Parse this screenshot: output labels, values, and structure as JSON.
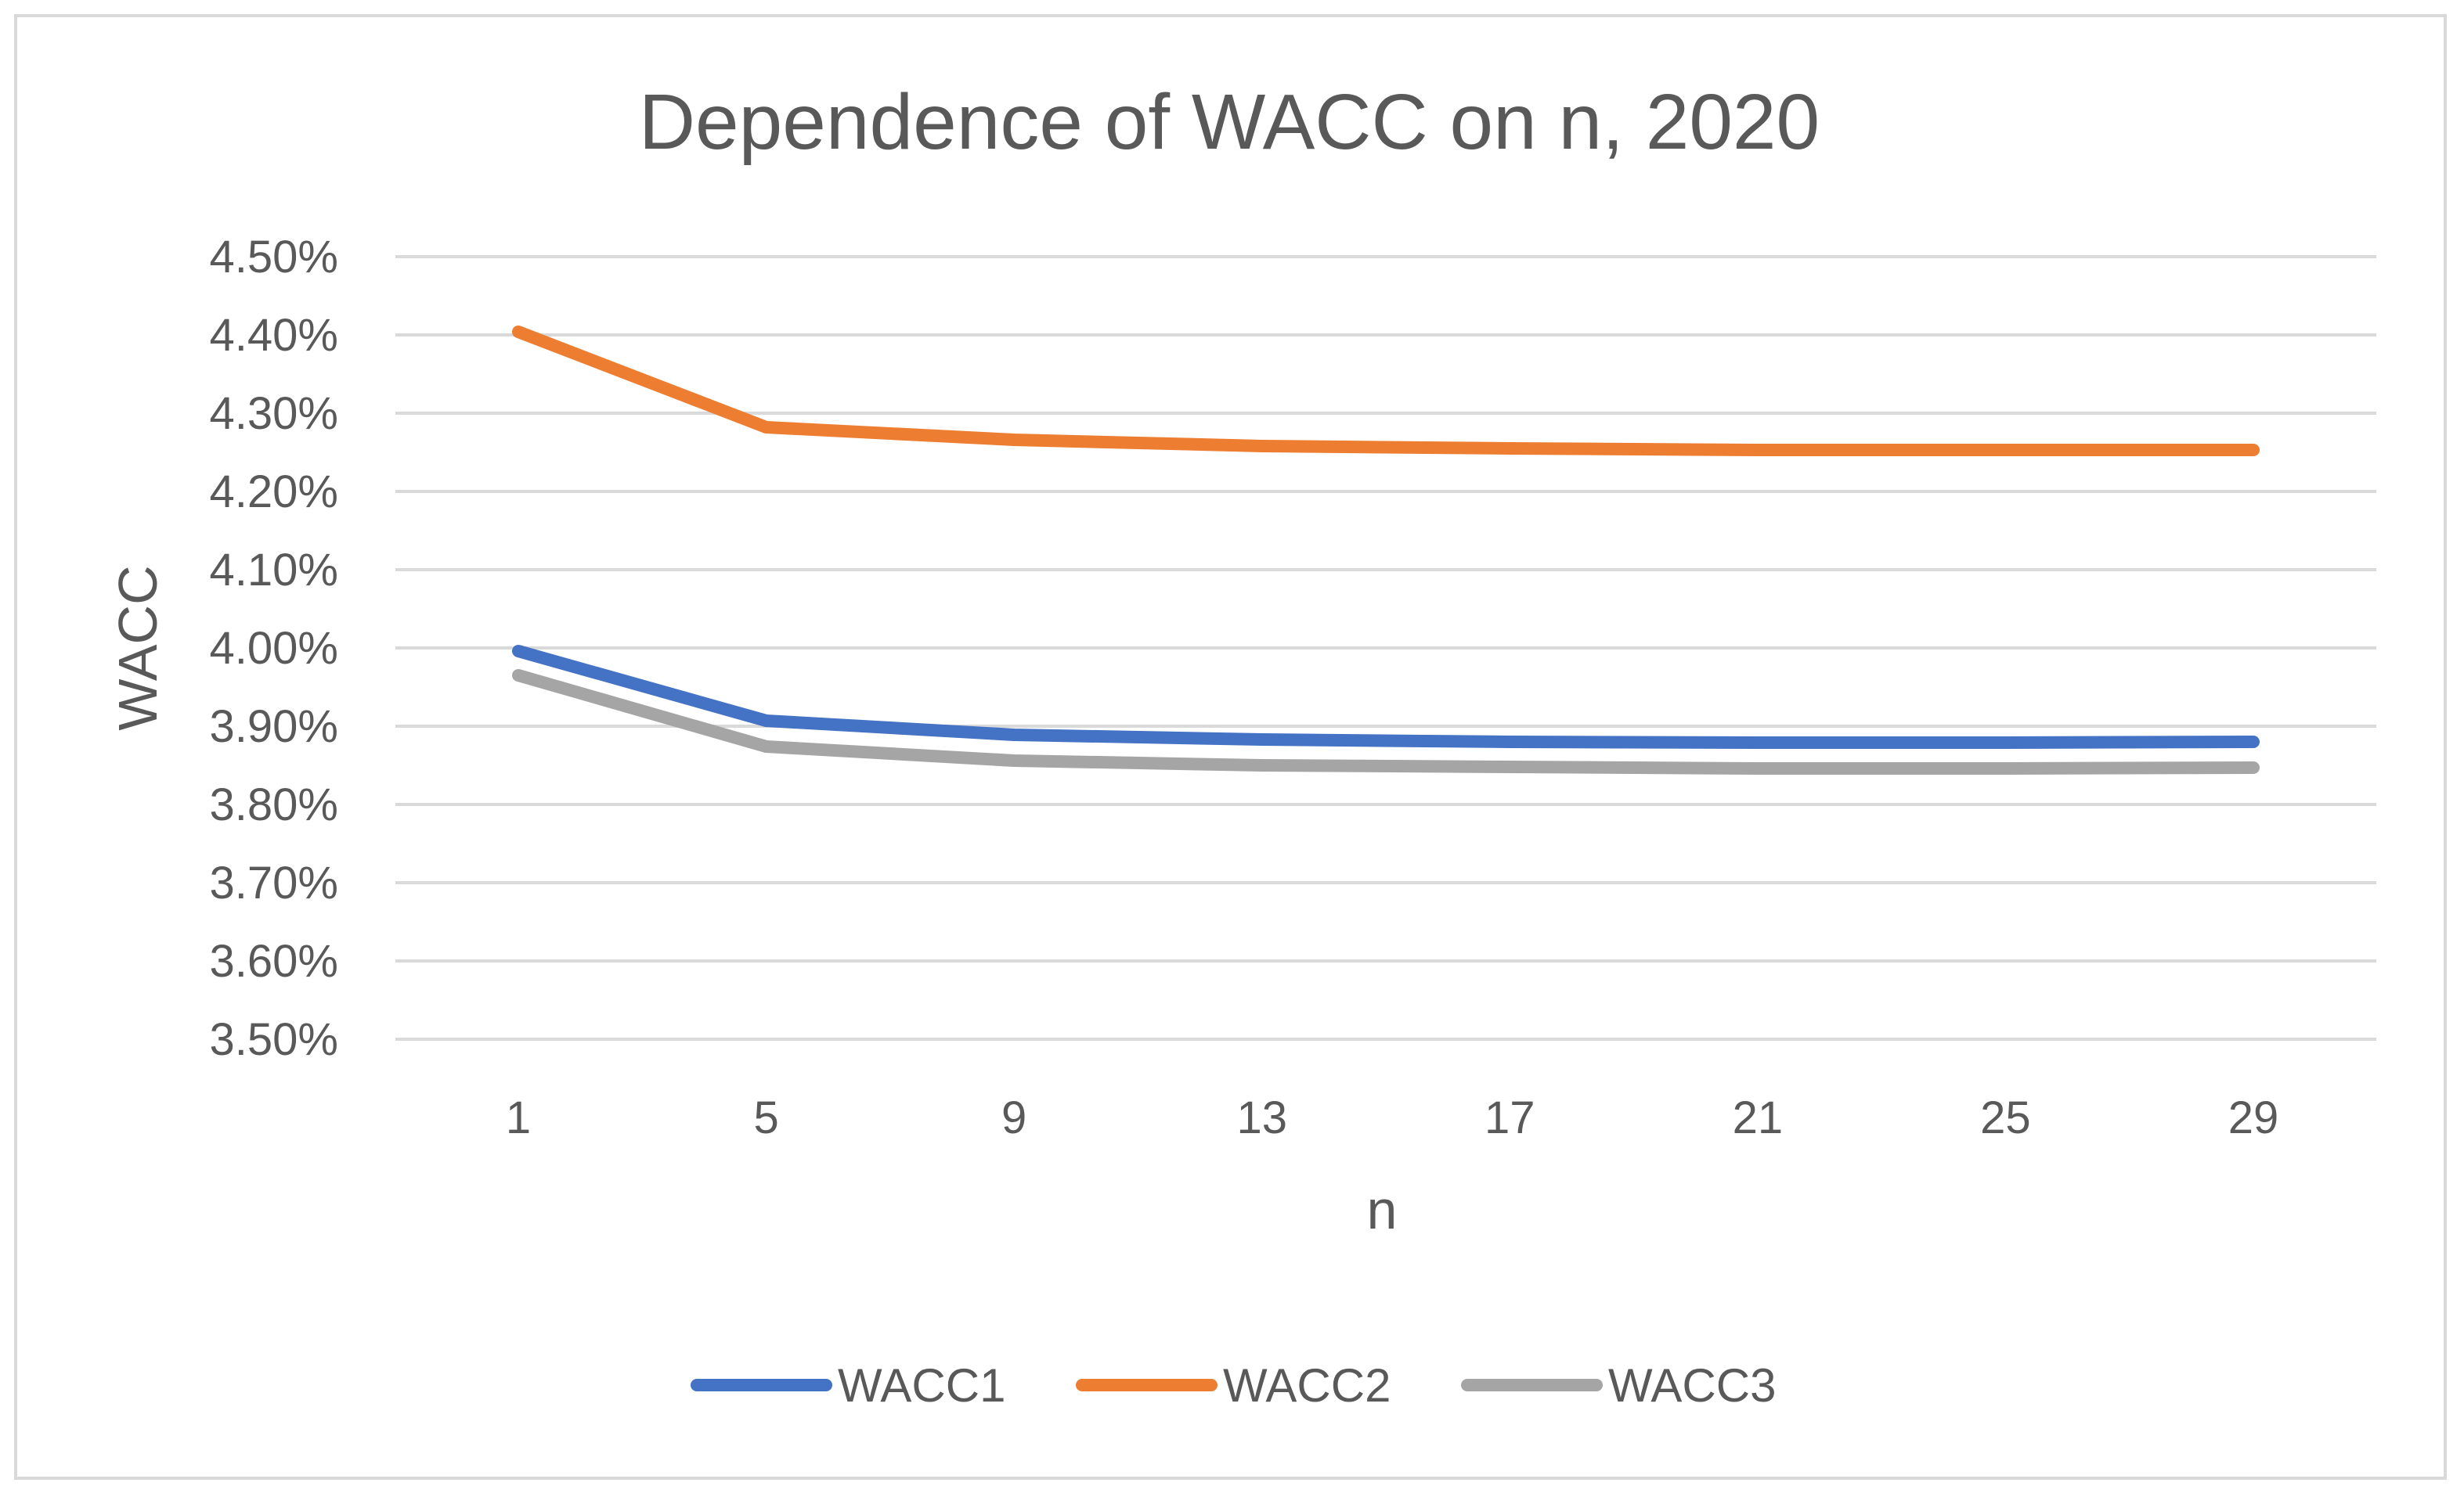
{
  "chart_data": {
    "type": "line",
    "title": "Dependence of WACC on n, 2020",
    "xlabel": "n",
    "ylabel": "WACC",
    "x": [
      1,
      5,
      9,
      13,
      17,
      21,
      25,
      29
    ],
    "x_tick_labels": [
      "1",
      "5",
      "9",
      "13",
      "17",
      "21",
      "25",
      "29"
    ],
    "ylim": [
      3.5,
      4.5
    ],
    "y_ticks": [
      3.5,
      3.6,
      3.7,
      3.8,
      3.9,
      4.0,
      4.1,
      4.2,
      4.3,
      4.4,
      4.5
    ],
    "y_tick_labels": [
      "3.50%",
      "3.60%",
      "3.70%",
      "3.80%",
      "3.90%",
      "4.00%",
      "4.10%",
      "4.20%",
      "4.30%",
      "4.40%",
      "4.50%"
    ],
    "grid": "horizontal",
    "legend_position": "bottom",
    "series": [
      {
        "name": "WACC1",
        "color": "#4472c4",
        "values": [
          3.996,
          3.907,
          3.889,
          3.883,
          3.88,
          3.879,
          3.879,
          3.88
        ]
      },
      {
        "name": "WACC2",
        "color": "#ed7d31",
        "values": [
          4.404,
          4.282,
          4.266,
          4.258,
          4.255,
          4.253,
          4.253,
          4.253
        ]
      },
      {
        "name": "WACC3",
        "color": "#a5a5a5",
        "values": [
          3.965,
          3.874,
          3.856,
          3.85,
          3.848,
          3.846,
          3.846,
          3.847
        ]
      }
    ],
    "colors": {
      "grid": "#d9d9d9",
      "text": "#595959",
      "border": "#d9d9d9"
    }
  }
}
